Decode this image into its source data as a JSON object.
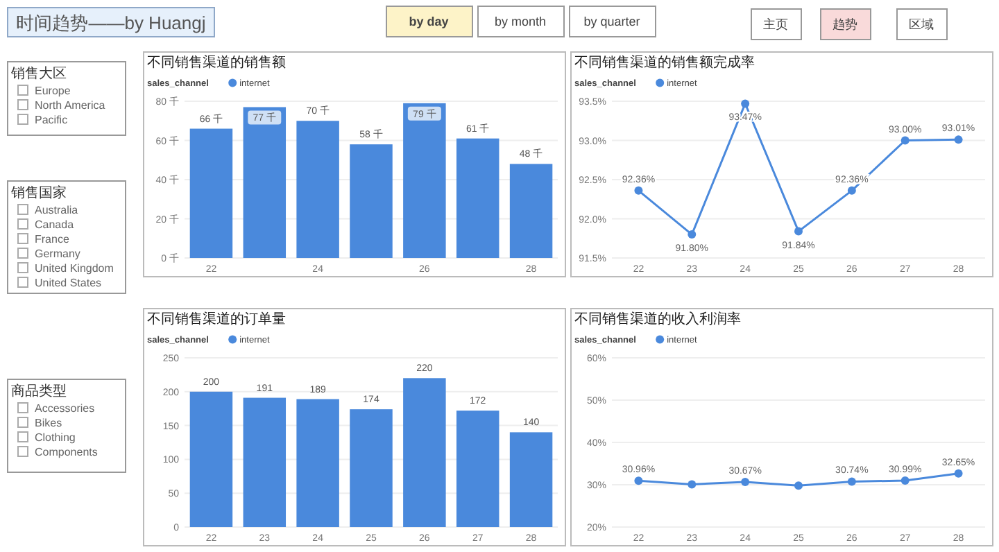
{
  "chart_data": [
    {
      "type": "other",
      "title": "时间趋势——by Huangj"
    },
    {
      "type": "other",
      "annotations": [
        "by day",
        "by month",
        "by quarter",
        "主页",
        "趋势",
        "区域"
      ],
      "colors": [
        "#fdf3c8",
        "#ffffff",
        "#ffffff",
        "#ffffff",
        "#f9dada",
        "#ffffff"
      ]
    },
    {
      "type": "other",
      "title": "销售大区",
      "annotations": [
        "Europe",
        "North America",
        "Pacific"
      ]
    },
    {
      "type": "bar",
      "title": "不同销售渠道的销售额",
      "legend_title": "sales_channel",
      "legend": "top left",
      "grid": "y",
      "categories": [
        "22",
        null,
        "24",
        null,
        "26",
        null,
        "28"
      ],
      "series": [
        {
          "name": "internet",
          "color": "#4a89dc",
          "values": [
            66,
            77,
            70,
            58,
            79,
            61,
            48
          ],
          "value_labels": [
            "66 千",
            "77 千",
            "70 千",
            "58 千",
            "79 千",
            "61 千",
            "48 千"
          ]
        }
      ],
      "ylim": [
        0,
        80
      ],
      "yticks": [
        {
          "value": 0,
          "label": "0 千"
        },
        {
          "value": 20,
          "label": "20 千"
        },
        {
          "value": 40,
          "label": "40 千"
        },
        {
          "value": 60,
          "label": "60 千"
        },
        {
          "value": 80,
          "label": "80 千"
        }
      ]
    },
    {
      "type": "line",
      "title": "不同销售渠道的销售额完成率",
      "legend_title": "sales_channel",
      "legend": "top left",
      "grid": "y",
      "marker": "circle",
      "categories": [
        "22",
        "23",
        "24",
        "25",
        "26",
        "27",
        "28"
      ],
      "series": [
        {
          "name": "internet",
          "color": "#4a89dc",
          "values": [
            92.36,
            91.8,
            93.47,
            91.84,
            92.36,
            93.0,
            93.01
          ],
          "value_labels": [
            "92.36%",
            "91.80%",
            "93.47%",
            "91.84%",
            "92.36%",
            "93.00%",
            "93.01%"
          ]
        }
      ],
      "ylim": [
        91.5,
        93.5
      ],
      "yticks": [
        {
          "value": 91.5,
          "label": "91.5%"
        },
        {
          "value": 92.0,
          "label": "92.0%"
        },
        {
          "value": 92.5,
          "label": "92.5%"
        },
        {
          "value": 93.0,
          "label": "93.0%"
        },
        {
          "value": 93.5,
          "label": "93.5%"
        }
      ]
    },
    {
      "type": "other",
      "title": "销售国家",
      "annotations": [
        "Australia",
        "Canada",
        "France",
        "Germany",
        "United Kingdom",
        "United States"
      ]
    },
    {
      "type": "other",
      "title": "商品类型",
      "annotations": [
        "Accessories",
        "Bikes",
        "Clothing",
        "Components"
      ]
    },
    {
      "type": "bar",
      "title": "不同销售渠道的订单量",
      "legend_title": "sales_channel",
      "legend": "top left",
      "grid": "y",
      "data_labels": true,
      "categories": [
        "22",
        "23",
        "24",
        "25",
        "26",
        "27",
        "28"
      ],
      "series": [
        {
          "name": "internet",
          "color": "#4a89dc",
          "values": [
            200,
            191,
            189,
            174,
            220,
            172,
            140
          ]
        }
      ],
      "ylim": [
        0,
        250
      ],
      "yticks": [
        0,
        50,
        100,
        150,
        200,
        250
      ]
    },
    {
      "type": "line",
      "title": "不同销售渠道的收入利润率",
      "legend_title": "sales_channel",
      "legend": "top left",
      "grid": "y",
      "marker": "circle",
      "categories": [
        "22",
        "23",
        "24",
        "25",
        "26",
        "27",
        "28"
      ],
      "series": [
        {
          "name": "internet",
          "color": "#4a89dc",
          "values": [
            30.96,
            30.1,
            30.67,
            29.8,
            30.74,
            30.99,
            32.65
          ],
          "value_labels": [
            "30.96%",
            null,
            "30.67%",
            null,
            "30.74%",
            "30.99%",
            "32.65%"
          ]
        }
      ],
      "ylim": [
        20,
        60
      ],
      "yticks": [
        {
          "value": 20,
          "label": "20%"
        },
        {
          "value": 30,
          "label": "30%"
        },
        {
          "value": 40,
          "label": "40%"
        },
        {
          "value": 50,
          "label": "50%"
        },
        {
          "value": 60,
          "label": "60%"
        }
      ]
    }
  ]
}
